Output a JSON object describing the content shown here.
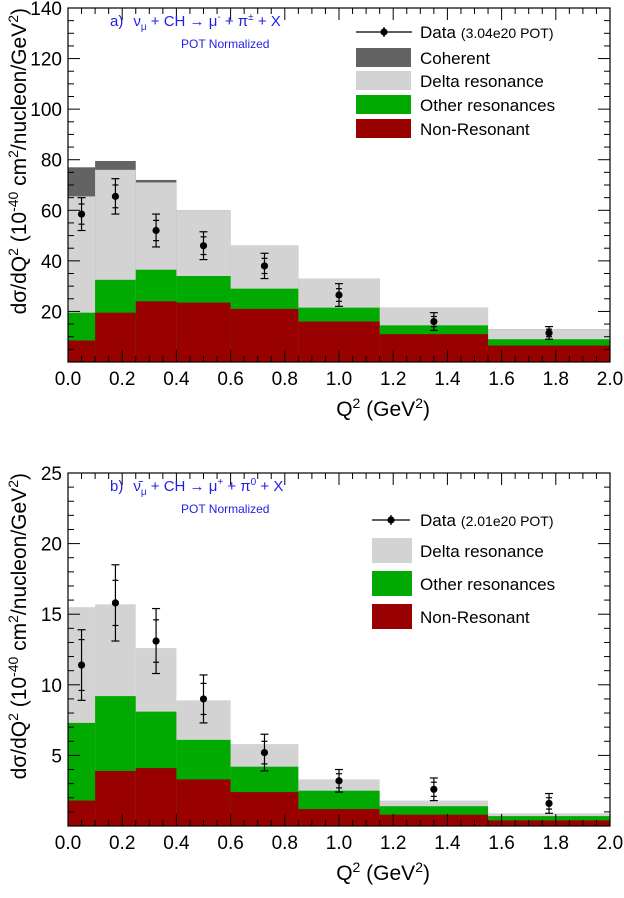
{
  "charts": [
    {
      "type": "area",
      "panel": "a",
      "annotation": {
        "prefix": "a)",
        "nu": "ν",
        "nu_sub": "μ",
        "reaction_mid": " + CH → μ",
        "mu_sup": "-",
        "reaction_tail": " + π",
        "pi_sup": "±",
        "reaction_end": " + X",
        "normalization": "POT Normalized"
      },
      "xlabel": {
        "base": "Q",
        "sup": "2",
        "unit_open": " (GeV",
        "unit_sup": "2",
        "unit_close": ")"
      },
      "ylabel": {
        "a": "dσ/dQ",
        "a_sup": "2",
        "b": " (10",
        "b_sup": "-40",
        "c": " cm",
        "c_sup": "2",
        "d": "/nucleon/GeV",
        "d_sup": "2",
        "e": ")"
      },
      "xlim": [
        0,
        2
      ],
      "ylim": [
        0,
        140
      ],
      "xticks": [
        "0.0",
        "0.2",
        "0.4",
        "0.6",
        "0.8",
        "1.0",
        "1.2",
        "1.4",
        "1.6",
        "1.8",
        "2.0"
      ],
      "yticks": [
        "20",
        "40",
        "60",
        "80",
        "100",
        "120",
        "140"
      ],
      "bin_edges": [
        0,
        0.1,
        0.25,
        0.4,
        0.6,
        0.85,
        1.15,
        1.55,
        2.0
      ],
      "stack": [
        {
          "name": "Non-Resonant",
          "color": "#990000",
          "values": [
            8.5,
            19.5,
            24.0,
            23.5,
            21.0,
            16.0,
            11.0,
            6.5
          ]
        },
        {
          "name": "Other resonances",
          "color": "#00aa00",
          "values": [
            19.5,
            32.5,
            36.5,
            34.0,
            29.0,
            21.5,
            14.5,
            9.0
          ]
        },
        {
          "name": "Delta resonance",
          "color": "#d3d3d3",
          "values": [
            65.5,
            76.0,
            71.0,
            60.0,
            46.0,
            33.0,
            21.5,
            13.0
          ]
        },
        {
          "name": "Coherent",
          "color": "#636363",
          "values": [
            77.0,
            79.5,
            72.0,
            60.0,
            46.0,
            33.0,
            21.5,
            13.0
          ]
        }
      ],
      "data_points": {
        "name": "Data",
        "note": "(3.04e20 POT)",
        "x": [
          0.05,
          0.175,
          0.325,
          0.5,
          0.725,
          1.0,
          1.35,
          1.775
        ],
        "y": [
          58.5,
          65.5,
          52.0,
          46.0,
          38.0,
          26.5,
          16.0,
          11.5
        ],
        "err_stat": [
          4.0,
          4.5,
          4.0,
          3.5,
          3.0,
          2.5,
          2.0,
          1.5
        ],
        "err_total": [
          6.5,
          7.0,
          6.5,
          5.5,
          5.0,
          4.5,
          3.5,
          2.5
        ]
      },
      "legend": [
        "Data",
        "Coherent",
        "Delta resonance",
        "Other resonances",
        "Non-Resonant"
      ],
      "legend_position": "top-right"
    },
    {
      "type": "area",
      "panel": "b",
      "annotation": {
        "prefix": "b)",
        "nu": "ν̄",
        "nu_sub": "μ",
        "reaction_mid": " + CH → μ",
        "mu_sup": "+",
        "reaction_tail": " + π",
        "pi_sup": "0",
        "reaction_end": " + X",
        "normalization": "POT Normalized"
      },
      "xlabel": {
        "base": "Q",
        "sup": "2",
        "unit_open": " (GeV",
        "unit_sup": "2",
        "unit_close": ")"
      },
      "ylabel": {
        "a": "dσ/dQ",
        "a_sup": "2",
        "b": " (10",
        "b_sup": "-40",
        "c": " cm",
        "c_sup": "2",
        "d": "/nucleon/GeV",
        "d_sup": "2",
        "e": ")"
      },
      "xlim": [
        0,
        2
      ],
      "ylim": [
        0,
        25
      ],
      "xticks": [
        "0.0",
        "0.2",
        "0.4",
        "0.6",
        "0.8",
        "1.0",
        "1.2",
        "1.4",
        "1.6",
        "1.8",
        "2.0"
      ],
      "yticks": [
        "5",
        "10",
        "15",
        "20",
        "25"
      ],
      "bin_edges": [
        0,
        0.1,
        0.25,
        0.4,
        0.6,
        0.85,
        1.15,
        1.55,
        2.0
      ],
      "stack": [
        {
          "name": "Non-Resonant",
          "color": "#990000",
          "values": [
            1.8,
            3.9,
            4.1,
            3.3,
            2.4,
            1.2,
            0.8,
            0.4
          ]
        },
        {
          "name": "Other resonances",
          "color": "#00aa00",
          "values": [
            7.3,
            9.2,
            8.1,
            6.1,
            4.2,
            2.5,
            1.4,
            0.7
          ]
        },
        {
          "name": "Delta resonance",
          "color": "#d3d3d3",
          "values": [
            15.5,
            15.7,
            12.6,
            8.9,
            5.8,
            3.3,
            1.8,
            0.9
          ]
        }
      ],
      "data_points": {
        "name": "Data",
        "note": "(2.01e20 POT)",
        "x": [
          0.05,
          0.175,
          0.325,
          0.5,
          0.725,
          1.0,
          1.35,
          1.775
        ],
        "y": [
          11.4,
          15.8,
          13.1,
          9.0,
          5.2,
          3.2,
          2.6,
          1.6
        ],
        "err_stat": [
          1.8,
          1.6,
          1.5,
          1.1,
          0.8,
          0.5,
          0.5,
          0.4
        ],
        "err_total": [
          2.5,
          2.7,
          2.3,
          1.7,
          1.3,
          0.8,
          0.8,
          0.7
        ]
      },
      "legend": [
        "Data",
        "Delta resonance",
        "Other resonances",
        "Non-Resonant"
      ],
      "legend_position": "top-right"
    }
  ]
}
